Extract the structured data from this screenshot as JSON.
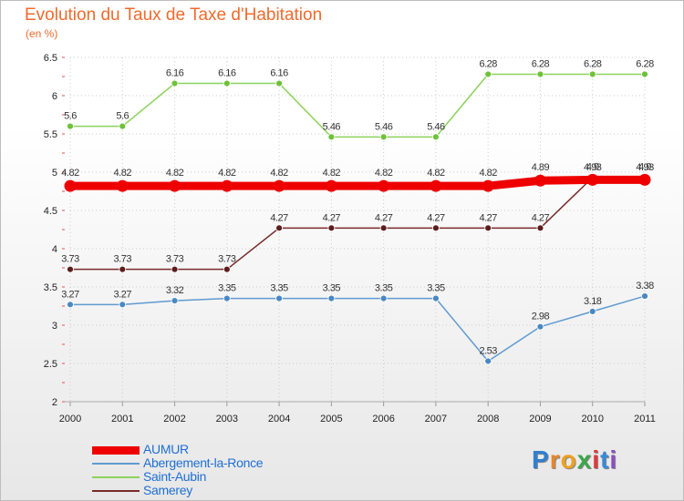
{
  "title": "Evolution du Taux de Taxe d'Habitation",
  "unit": "(en %)",
  "logo": "Proxiti",
  "colors": {
    "title": "#f06a2c",
    "legend_text": "#1e6fd6",
    "grid": "#cccccc"
  },
  "chart_data": {
    "type": "line",
    "title": "Evolution du Taux de Taxe d'Habitation",
    "ylabel": "(en %)",
    "xlabel": "",
    "ylim": [
      2,
      6.5
    ],
    "yticks": [
      "2",
      "2.5",
      "3",
      "3.5",
      "4",
      "4.5",
      "5",
      "5.5",
      "6",
      "6.5"
    ],
    "x": [
      "2000",
      "2001",
      "2002",
      "2003",
      "2004",
      "2005",
      "2006",
      "2007",
      "2008",
      "2009",
      "2010",
      "2011"
    ],
    "series": [
      {
        "name": "Saint-Aubin",
        "color": "#8cd25a",
        "dot": "#6fc13a",
        "width": 1.5,
        "values": [
          5.6,
          5.6,
          6.16,
          6.16,
          6.16,
          5.46,
          5.46,
          5.46,
          6.28,
          6.28,
          6.28,
          6.28
        ],
        "labels": [
          "5.6",
          "5.6",
          "6.16",
          "6.16",
          "6.16",
          "5.46",
          "5.46",
          "5.46",
          "6.28",
          "6.28",
          "6.28",
          "6.28"
        ]
      },
      {
        "name": "Samerey",
        "color": "#7a2a2a",
        "dot": "#5c1d1d",
        "width": 1.5,
        "values": [
          3.73,
          3.73,
          3.73,
          3.73,
          4.27,
          4.27,
          4.27,
          4.27,
          4.27,
          4.27,
          4.93,
          4.93
        ],
        "labels": [
          "3.73",
          "3.73",
          "3.73",
          "3.73",
          "4.27",
          "4.27",
          "4.27",
          "4.27",
          "4.27",
          "4.27",
          "4.93",
          "4.93"
        ]
      },
      {
        "name": "Abergement-la-Ronce",
        "color": "#5f9bd0",
        "dot": "#4a88c4",
        "width": 1.5,
        "values": [
          3.27,
          3.27,
          3.32,
          3.35,
          3.35,
          3.35,
          3.35,
          3.35,
          2.53,
          2.98,
          3.18,
          3.38
        ],
        "labels": [
          "3.27",
          "3.27",
          "3.32",
          "3.35",
          "3.35",
          "3.35",
          "3.35",
          "3.35",
          "2.53",
          "2.98",
          "3.18",
          "3.38"
        ]
      },
      {
        "name": "AUMUR",
        "color": "#ee0000",
        "dot": "#ee0000",
        "width": 9,
        "values": [
          4.82,
          4.82,
          4.82,
          4.82,
          4.82,
          4.82,
          4.82,
          4.82,
          4.82,
          4.89,
          4.9,
          4.9
        ],
        "labels": [
          "4.82",
          "4.82",
          "4.82",
          "4.82",
          "4.82",
          "4.82",
          "4.82",
          "4.82",
          "4.82",
          "4.89",
          "4.9",
          "4.9"
        ]
      }
    ],
    "legend": [
      "AUMUR",
      "Abergement-la-Ronce",
      "Saint-Aubin",
      "Samerey"
    ]
  }
}
